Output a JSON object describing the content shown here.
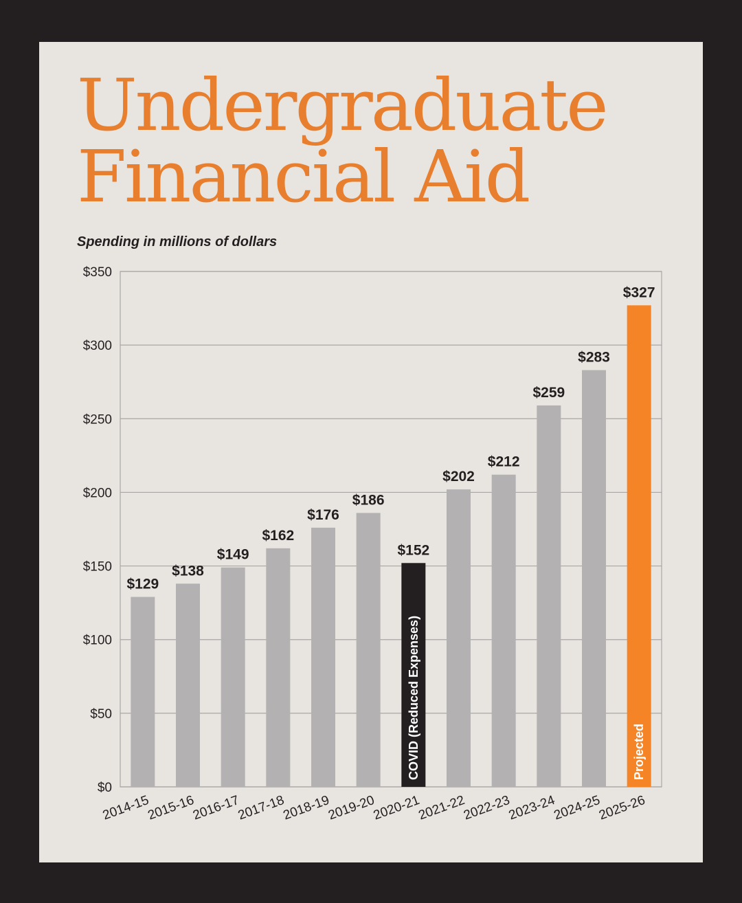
{
  "page": {
    "title_line1": "Undergraduate",
    "title_line2": "Financial Aid",
    "subtitle": "Spending in millions of dollars"
  },
  "colors": {
    "frame": "#231f20",
    "card": "#e8e5e1",
    "title": "#e87f2e",
    "bar_default": "#b3b1b2",
    "bar_covid": "#231f20",
    "bar_projected": "#f58426",
    "grid": "#a8a6a4"
  },
  "chart_data": {
    "type": "bar",
    "title": "Undergraduate Financial Aid",
    "subtitle": "Spending in millions of dollars",
    "xlabel": "",
    "ylabel": "",
    "categories": [
      "2014-15",
      "2015-16",
      "2016-17",
      "2017-18",
      "2018-19",
      "2019-20",
      "2020-21",
      "2021-22",
      "2022-23",
      "2023-24",
      "2024-25",
      "2025-26"
    ],
    "values": [
      129,
      138,
      149,
      162,
      176,
      186,
      152,
      202,
      212,
      259,
      283,
      327
    ],
    "value_labels": [
      "$129",
      "$138",
      "$149",
      "$162",
      "$176",
      "$186",
      "$152",
      "$202",
      "$212",
      "$259",
      "$283",
      "$327"
    ],
    "ylim": [
      0,
      350
    ],
    "yticks": [
      0,
      50,
      100,
      150,
      200,
      250,
      300,
      350
    ],
    "ytick_labels": [
      "$0",
      "$50",
      "$100",
      "$150",
      "$200",
      "$250",
      "$300",
      "$350"
    ],
    "grid": true,
    "bar_styles": [
      "default",
      "default",
      "default",
      "default",
      "default",
      "default",
      "covid",
      "default",
      "default",
      "default",
      "default",
      "projected"
    ],
    "annotations": [
      {
        "category": "2020-21",
        "text": "COVID (Reduced Expenses)"
      },
      {
        "category": "2025-26",
        "text": "Projected"
      }
    ]
  }
}
